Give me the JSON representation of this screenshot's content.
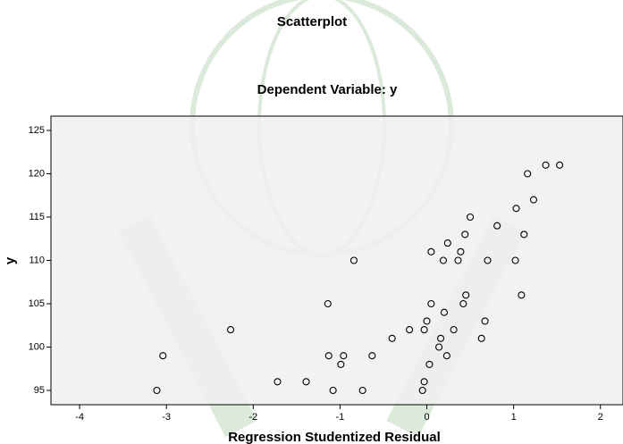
{
  "chart_data": {
    "type": "scatter",
    "title": "Scatterplot",
    "subtitle": "Dependent Variable: y",
    "x_label": "Regression Studentized Residual",
    "y_label": "y",
    "x": [
      1.37,
      1.53,
      1.16,
      1.23,
      1.03,
      0.5,
      0.81,
      0.44,
      1.12,
      0.24,
      0.39,
      0.05,
      0.19,
      0.36,
      0.7,
      1.02,
      -0.84,
      1.09,
      0.45,
      0.42,
      0.05,
      -1.14,
      0.2,
      0.67,
      0,
      -0.2,
      -0.03,
      0.31,
      -2.26,
      0.16,
      -0.4,
      0.63,
      0.14,
      -3.04,
      -1.13,
      -0.96,
      -0.63,
      0.23,
      -0.99,
      0.03,
      -1.72,
      -1.39,
      -0.03,
      -3.11,
      -1.08,
      -0.74,
      -0.05
    ],
    "y": [
      121,
      121,
      120,
      117,
      116,
      115,
      114,
      113,
      113,
      112,
      111,
      111,
      110,
      110,
      110,
      110,
      110,
      106,
      106,
      105,
      105,
      105,
      104,
      103,
      103,
      102,
      102,
      102,
      102,
      101,
      101,
      101,
      100,
      99,
      99,
      99,
      99,
      99,
      98,
      98,
      96,
      96,
      96,
      95,
      95,
      95,
      95
    ],
    "color": "#000000",
    "xlim": [
      -4.33,
      2.26
    ],
    "ylim": [
      93.35,
      126.65
    ],
    "xticks": [
      -4,
      -3,
      -2,
      -1,
      0,
      1,
      2
    ],
    "yticks": [
      95,
      100,
      105,
      110,
      115,
      120,
      125
    ]
  }
}
